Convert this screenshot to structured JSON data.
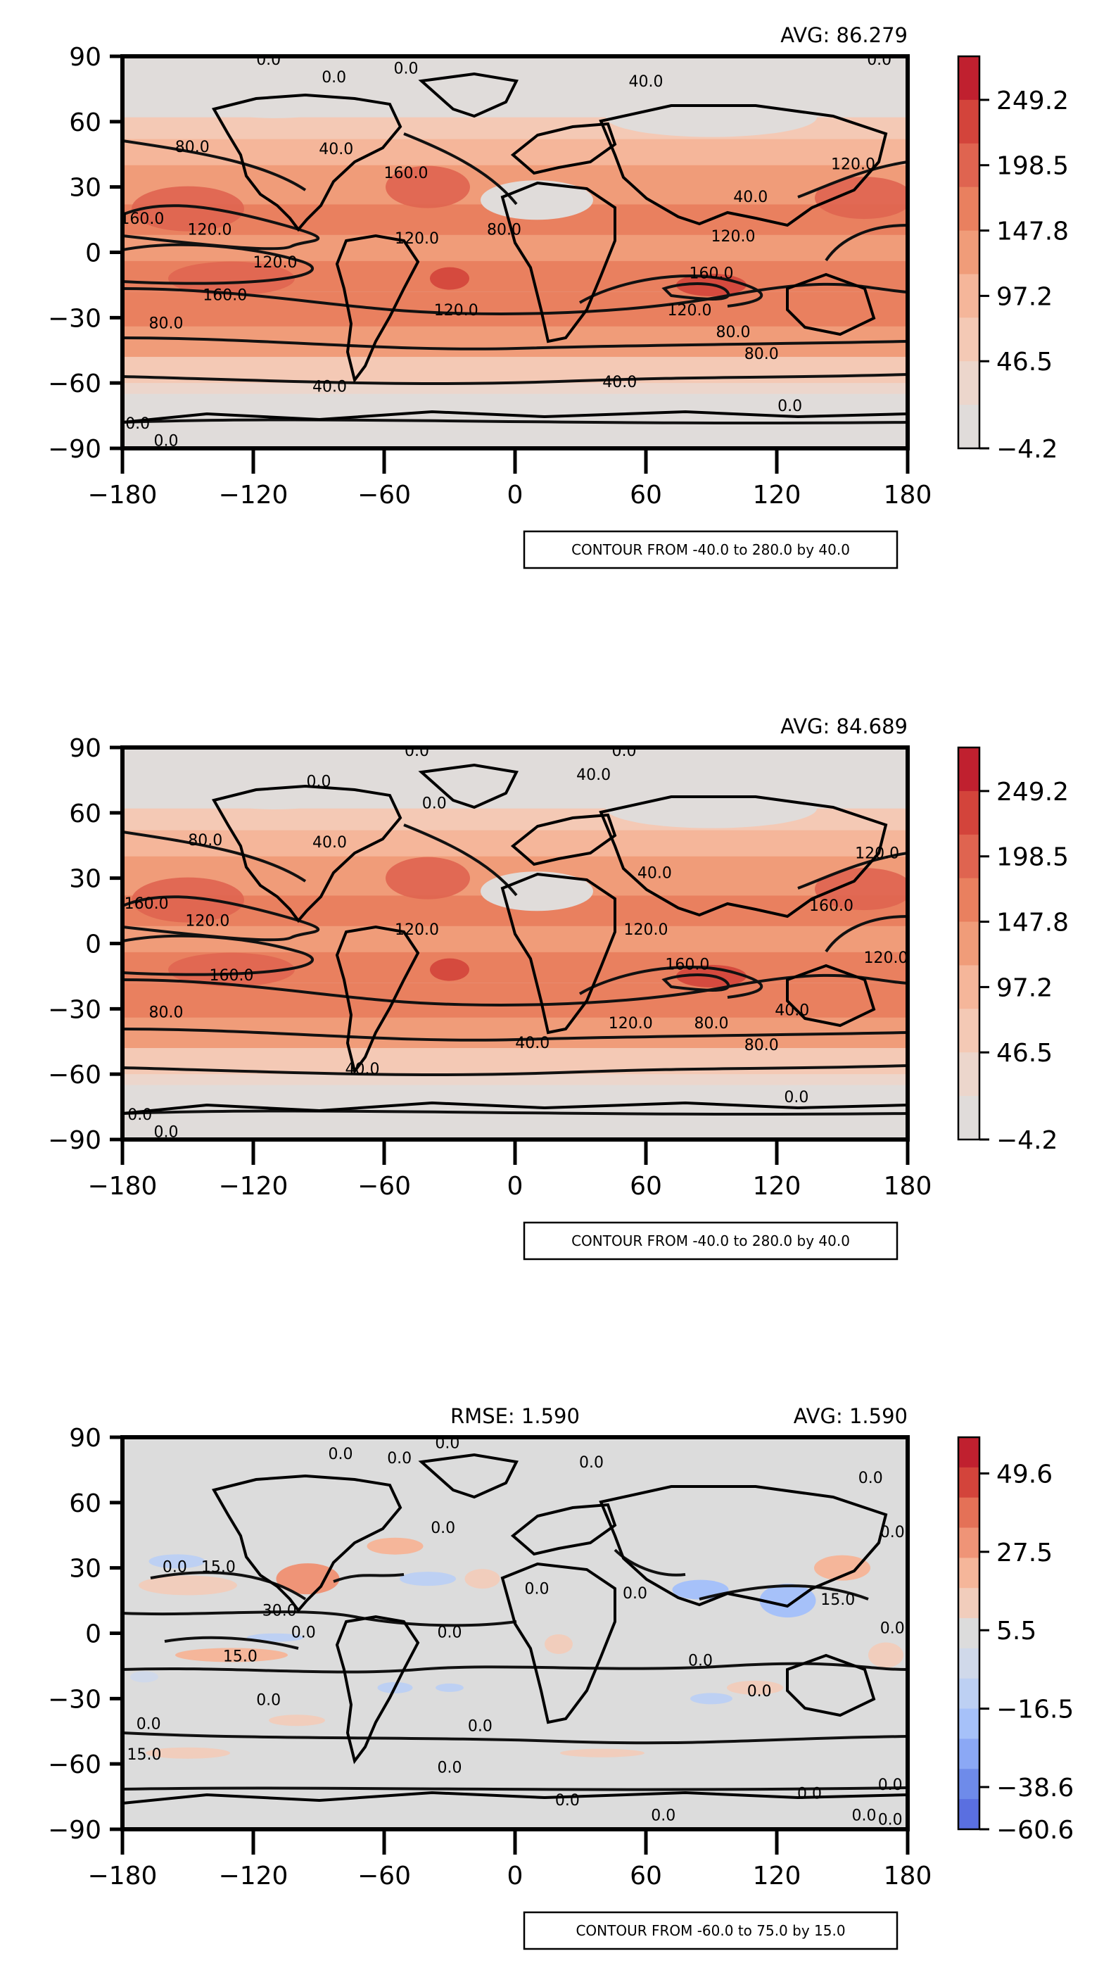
{
  "panels": [
    {
      "avg_text": "AVG: 86.279",
      "rmse_text": "",
      "contour_text": "CONTOUR FROM -40.0 to 280.0 by 40.0",
      "colorbar": {
        "labels": [
          "249.2",
          "198.5",
          "147.8",
          "97.2",
          "46.5",
          "−4.2"
        ],
        "colors": [
          "#c0202f",
          "#d3443b",
          "#df6450",
          "#e9805f",
          "#f09c79",
          "#f5b69a",
          "#f4c9b5",
          "#ecd6cc",
          "#e0dcda"
        ]
      },
      "contour_labels": [
        {
          "t": "0.0",
          "lon": -113,
          "lat": 88
        },
        {
          "t": "0.0",
          "lon": -83,
          "lat": 80
        },
        {
          "t": "0.0",
          "lon": -50,
          "lat": 84
        },
        {
          "t": "40.0",
          "lon": 60,
          "lat": 78
        },
        {
          "t": "0.0",
          "lon": 167,
          "lat": 88
        },
        {
          "t": "80.0",
          "lon": -148,
          "lat": 48
        },
        {
          "t": "40.0",
          "lon": -82,
          "lat": 47
        },
        {
          "t": "160.0",
          "lon": -50,
          "lat": 36
        },
        {
          "t": "120.0",
          "lon": 155,
          "lat": 40
        },
        {
          "t": "160.0",
          "lon": -171,
          "lat": 15
        },
        {
          "t": "120.0",
          "lon": -140,
          "lat": 10
        },
        {
          "t": "120.0",
          "lon": -45,
          "lat": 6
        },
        {
          "t": "80.0",
          "lon": -5,
          "lat": 10
        },
        {
          "t": "40.0",
          "lon": 108,
          "lat": 25
        },
        {
          "t": "120.0",
          "lon": 100,
          "lat": 7
        },
        {
          "t": "120.0",
          "lon": -110,
          "lat": -5
        },
        {
          "t": "160.0",
          "lon": -133,
          "lat": -20
        },
        {
          "t": "120.0",
          "lon": -27,
          "lat": -27
        },
        {
          "t": "160.0",
          "lon": 90,
          "lat": -10
        },
        {
          "t": "120.0",
          "lon": 80,
          "lat": -27
        },
        {
          "t": "80.0",
          "lon": -160,
          "lat": -33
        },
        {
          "t": "80.0",
          "lon": 100,
          "lat": -37
        },
        {
          "t": "80.0",
          "lon": 113,
          "lat": -47
        },
        {
          "t": "40.0",
          "lon": -85,
          "lat": -62
        },
        {
          "t": "40.0",
          "lon": 48,
          "lat": -60
        },
        {
          "t": "0.0",
          "lon": 126,
          "lat": -71
        },
        {
          "t": "0.0",
          "lon": -173,
          "lat": -79
        },
        {
          "t": "0.0",
          "lon": -160,
          "lat": -87
        }
      ]
    },
    {
      "avg_text": "AVG: 84.689",
      "rmse_text": "",
      "contour_text": "CONTOUR FROM -40.0 to 280.0 by 40.0",
      "colorbar": {
        "labels": [
          "249.2",
          "198.5",
          "147.8",
          "97.2",
          "46.5",
          "−4.2"
        ],
        "colors": [
          "#c0202f",
          "#d3443b",
          "#df6450",
          "#e9805f",
          "#f09c79",
          "#f5b69a",
          "#f4c9b5",
          "#ecd6cc",
          "#e0dcda"
        ]
      },
      "contour_labels": [
        {
          "t": "0.0",
          "lon": -90,
          "lat": 74
        },
        {
          "t": "0.0",
          "lon": -45,
          "lat": 88
        },
        {
          "t": "0.0",
          "lon": 50,
          "lat": 88
        },
        {
          "t": "0.0",
          "lon": -37,
          "lat": 64
        },
        {
          "t": "40.0",
          "lon": 36,
          "lat": 77
        },
        {
          "t": "80.0",
          "lon": -142,
          "lat": 47
        },
        {
          "t": "40.0",
          "lon": -85,
          "lat": 46
        },
        {
          "t": "120.0",
          "lon": 166,
          "lat": 41
        },
        {
          "t": "160.0",
          "lon": -169,
          "lat": 18
        },
        {
          "t": "120.0",
          "lon": -141,
          "lat": 10
        },
        {
          "t": "120.0",
          "lon": -45,
          "lat": 6
        },
        {
          "t": "40.0",
          "lon": 64,
          "lat": 32
        },
        {
          "t": "120.0",
          "lon": 60,
          "lat": 6
        },
        {
          "t": "160.0",
          "lon": 145,
          "lat": 17
        },
        {
          "t": "120.0",
          "lon": 170,
          "lat": -7
        },
        {
          "t": "160.0",
          "lon": -130,
          "lat": -15
        },
        {
          "t": "160.0",
          "lon": 79,
          "lat": -10
        },
        {
          "t": "80.0",
          "lon": -160,
          "lat": -32
        },
        {
          "t": "120.0",
          "lon": 53,
          "lat": -37
        },
        {
          "t": "80.0",
          "lon": 90,
          "lat": -37
        },
        {
          "t": "80.0",
          "lon": 113,
          "lat": -47
        },
        {
          "t": "40.0",
          "lon": 127,
          "lat": -31
        },
        {
          "t": "40.0",
          "lon": -70,
          "lat": -58
        },
        {
          "t": "40.0",
          "lon": 8,
          "lat": -46
        },
        {
          "t": "0.0",
          "lon": 129,
          "lat": -71
        },
        {
          "t": "0.0",
          "lon": -172,
          "lat": -79
        },
        {
          "t": "0.0",
          "lon": -160,
          "lat": -87
        }
      ]
    },
    {
      "avg_text": "AVG: 1.590",
      "rmse_text": "RMSE: 1.590",
      "contour_text": "CONTOUR FROM -60.0 to 75.0 by 15.0",
      "colorbar": {
        "labels": [
          "49.6",
          "27.5",
          "5.5",
          "−16.5",
          "−38.6",
          "−60.6"
        ],
        "colors": [
          "#c0202f",
          "#d3443b",
          "#e47157",
          "#ef9477",
          "#f5b69a",
          "#f1cdbc",
          "#dcdcdc",
          "#d0d9ea",
          "#bdd0f3",
          "#a6c1f9",
          "#8ba8f5",
          "#6e8bea",
          "#5a6fe0"
        ]
      },
      "contour_labels": [
        {
          "t": "0.0",
          "lon": -80,
          "lat": 82
        },
        {
          "t": "0.0",
          "lon": -53,
          "lat": 80
        },
        {
          "t": "0.0",
          "lon": -31,
          "lat": 87
        },
        {
          "t": "0.0",
          "lon": 35,
          "lat": 78
        },
        {
          "t": "0.0",
          "lon": 163,
          "lat": 71
        },
        {
          "t": "0.0",
          "lon": 173,
          "lat": 46
        },
        {
          "t": "15.0",
          "lon": -136,
          "lat": 30
        },
        {
          "t": "0.0",
          "lon": -156,
          "lat": 30
        },
        {
          "t": "30.0",
          "lon": -108,
          "lat": 10
        },
        {
          "t": "0.0",
          "lon": -97,
          "lat": 0
        },
        {
          "t": "0.0",
          "lon": -33,
          "lat": 48
        },
        {
          "t": "0.0",
          "lon": -30,
          "lat": 0
        },
        {
          "t": "0.0",
          "lon": 10,
          "lat": 20
        },
        {
          "t": "0.0",
          "lon": 55,
          "lat": 18
        },
        {
          "t": "15.0",
          "lon": 148,
          "lat": 15
        },
        {
          "t": "0.0",
          "lon": 173,
          "lat": 2
        },
        {
          "t": "15.0",
          "lon": -126,
          "lat": -11
        },
        {
          "t": "0.0",
          "lon": -113,
          "lat": -31
        },
        {
          "t": "0.0",
          "lon": -168,
          "lat": -42
        },
        {
          "t": "15.0",
          "lon": -170,
          "lat": -56
        },
        {
          "t": "0.0",
          "lon": -16,
          "lat": -43
        },
        {
          "t": "0.0",
          "lon": 85,
          "lat": -13
        },
        {
          "t": "0.0",
          "lon": 112,
          "lat": -27
        },
        {
          "t": "0.0",
          "lon": -30,
          "lat": -62
        },
        {
          "t": "0.0",
          "lon": 24,
          "lat": -77
        },
        {
          "t": "0.0",
          "lon": 68,
          "lat": -84
        },
        {
          "t": "0.0",
          "lon": 135,
          "lat": -74
        },
        {
          "t": "0.0",
          "lon": 160,
          "lat": -84
        },
        {
          "t": "0.0",
          "lon": 172,
          "lat": -86
        },
        {
          "t": "0.0",
          "lon": 172,
          "lat": -70
        }
      ]
    }
  ],
  "chart_data": [
    {
      "type": "heatmap",
      "summary": "AVG: 86.279",
      "x_ticks": [
        "−180",
        "−120",
        "−60",
        "0",
        "60",
        "120",
        "180"
      ],
      "y_ticks": [
        "90",
        "60",
        "30",
        "0",
        "−30",
        "−60",
        "−90"
      ],
      "xlim": [
        -180,
        180
      ],
      "ylim": [
        -90,
        90
      ],
      "colorbar_range": [
        -4.2,
        249.2
      ],
      "contour_levels": [
        -40,
        0,
        40,
        80,
        120,
        160,
        200,
        240,
        280
      ]
    },
    {
      "type": "heatmap",
      "summary": "AVG: 84.689",
      "x_ticks": [
        "−180",
        "−120",
        "−60",
        "0",
        "60",
        "120",
        "180"
      ],
      "y_ticks": [
        "90",
        "60",
        "30",
        "0",
        "−30",
        "−60",
        "−90"
      ],
      "xlim": [
        -180,
        180
      ],
      "ylim": [
        -90,
        90
      ],
      "colorbar_range": [
        -4.2,
        249.2
      ],
      "contour_levels": [
        -40,
        0,
        40,
        80,
        120,
        160,
        200,
        240,
        280
      ]
    },
    {
      "type": "heatmap",
      "summary": "RMSE: 1.590 / AVG: 1.590",
      "x_ticks": [
        "−180",
        "−120",
        "−60",
        "0",
        "60",
        "120",
        "180"
      ],
      "y_ticks": [
        "90",
        "60",
        "30",
        "0",
        "−30",
        "−60",
        "−90"
      ],
      "xlim": [
        -180,
        180
      ],
      "ylim": [
        -90,
        90
      ],
      "colorbar_range": [
        -60.6,
        49.6
      ],
      "contour_levels": [
        -60,
        -45,
        -30,
        -15,
        0,
        15,
        30,
        45,
        60,
        75
      ]
    }
  ]
}
